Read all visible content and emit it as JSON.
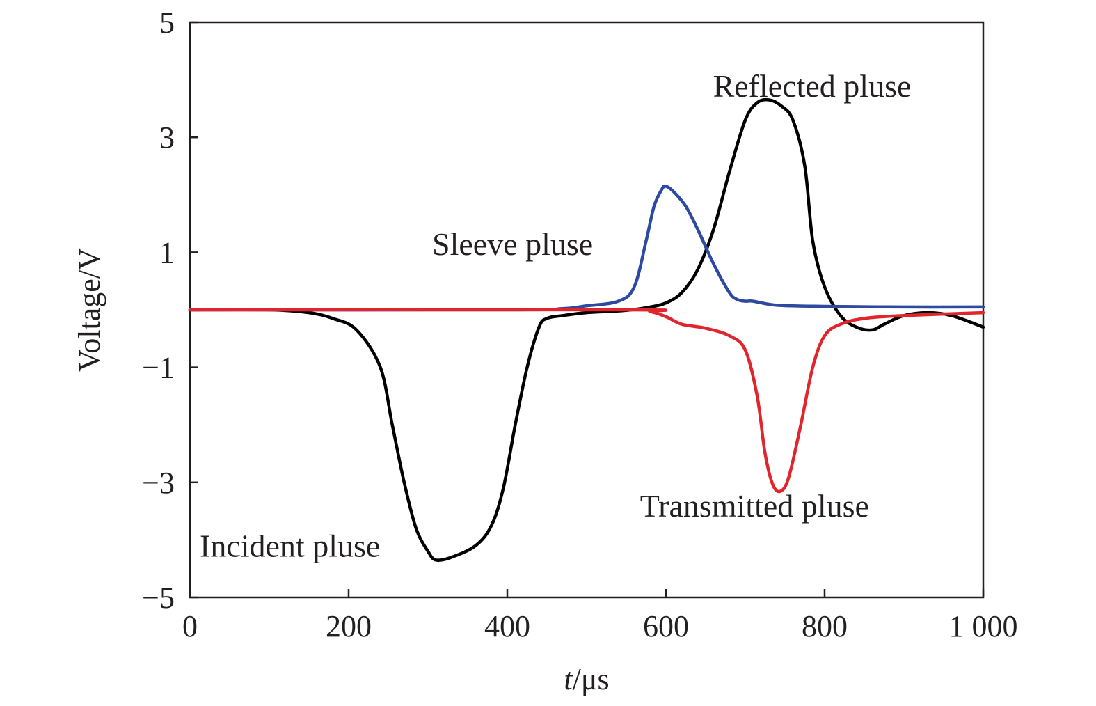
{
  "chart_data": {
    "type": "line",
    "xlabel_italic": "t",
    "xlabel_unit": "/μs",
    "ylabel": "Voltage/V",
    "xlim": [
      0,
      1000
    ],
    "ylim": [
      -5,
      5
    ],
    "x_ticks": [
      0,
      200,
      400,
      600,
      800,
      1000
    ],
    "x_tick_labels": [
      "0",
      "200",
      "400",
      "600",
      "800",
      "1 000"
    ],
    "y_ticks": [
      -5,
      -3,
      -1,
      1,
      3,
      5
    ],
    "y_tick_labels": [
      "−5",
      "−3",
      "−1",
      "1",
      "3",
      "5"
    ],
    "grid": false,
    "series": [
      {
        "key": "incident-reflected",
        "color": "#000000",
        "x": [
          0,
          100,
          150,
          180,
          210,
          240,
          255,
          270,
          285,
          300,
          310,
          330,
          360,
          380,
          395,
          410,
          425,
          440,
          450,
          470,
          500,
          550,
          580,
          600,
          620,
          640,
          660,
          680,
          700,
          715,
          730,
          745,
          760,
          775,
          785,
          800,
          820,
          840,
          860,
          875,
          900,
          930,
          960,
          1000
        ],
        "y": [
          0,
          0,
          -0.05,
          -0.15,
          -0.35,
          -1.0,
          -2.0,
          -3.0,
          -3.8,
          -4.2,
          -4.35,
          -4.3,
          -4.1,
          -3.75,
          -3.1,
          -2.0,
          -1.0,
          -0.3,
          -0.15,
          -0.1,
          -0.05,
          -0.01,
          0.05,
          0.12,
          0.3,
          0.7,
          1.4,
          2.4,
          3.3,
          3.6,
          3.65,
          3.55,
          3.3,
          2.5,
          1.2,
          0.4,
          -0.1,
          -0.3,
          -0.35,
          -0.25,
          -0.1,
          -0.05,
          -0.1,
          -0.3
        ]
      },
      {
        "key": "sleeve",
        "color": "#2e4aa0",
        "x": [
          0,
          400,
          470,
          500,
          540,
          560,
          575,
          585,
          595,
          600,
          610,
          625,
          640,
          660,
          680,
          690,
          700,
          710,
          740,
          800,
          900,
          1000
        ],
        "y": [
          0,
          0,
          0.02,
          0.07,
          0.15,
          0.4,
          1.2,
          1.8,
          2.1,
          2.15,
          2.05,
          1.8,
          1.4,
          0.8,
          0.3,
          0.18,
          0.15,
          0.15,
          0.08,
          0.06,
          0.05,
          0.05
        ]
      },
      {
        "key": "transmitted",
        "color": "#e0252c",
        "x": [
          0,
          550,
          580,
          600,
          620,
          650,
          680,
          700,
          715,
          725,
          735,
          745,
          755,
          770,
          785,
          800,
          820,
          850,
          900,
          1000
        ],
        "y": [
          0,
          0,
          -0.03,
          -0.12,
          -0.25,
          -0.32,
          -0.45,
          -0.7,
          -1.5,
          -2.5,
          -3.05,
          -3.15,
          -2.9,
          -2.0,
          -1.0,
          -0.45,
          -0.25,
          -0.15,
          -0.1,
          -0.05
        ]
      }
    ],
    "annotations": [
      {
        "key": "incident",
        "text": "Incident pluse",
        "x": 0,
        "y": -4.1
      },
      {
        "key": "sleeve",
        "text": "Sleeve pluse",
        "x": 293,
        "y": 1.15
      },
      {
        "key": "reflected",
        "text": "Reflected pluse",
        "x": 647,
        "y": 3.9
      },
      {
        "key": "transmitted",
        "text": "Transmitted pluse",
        "x": 555,
        "y": -3.4
      }
    ]
  }
}
